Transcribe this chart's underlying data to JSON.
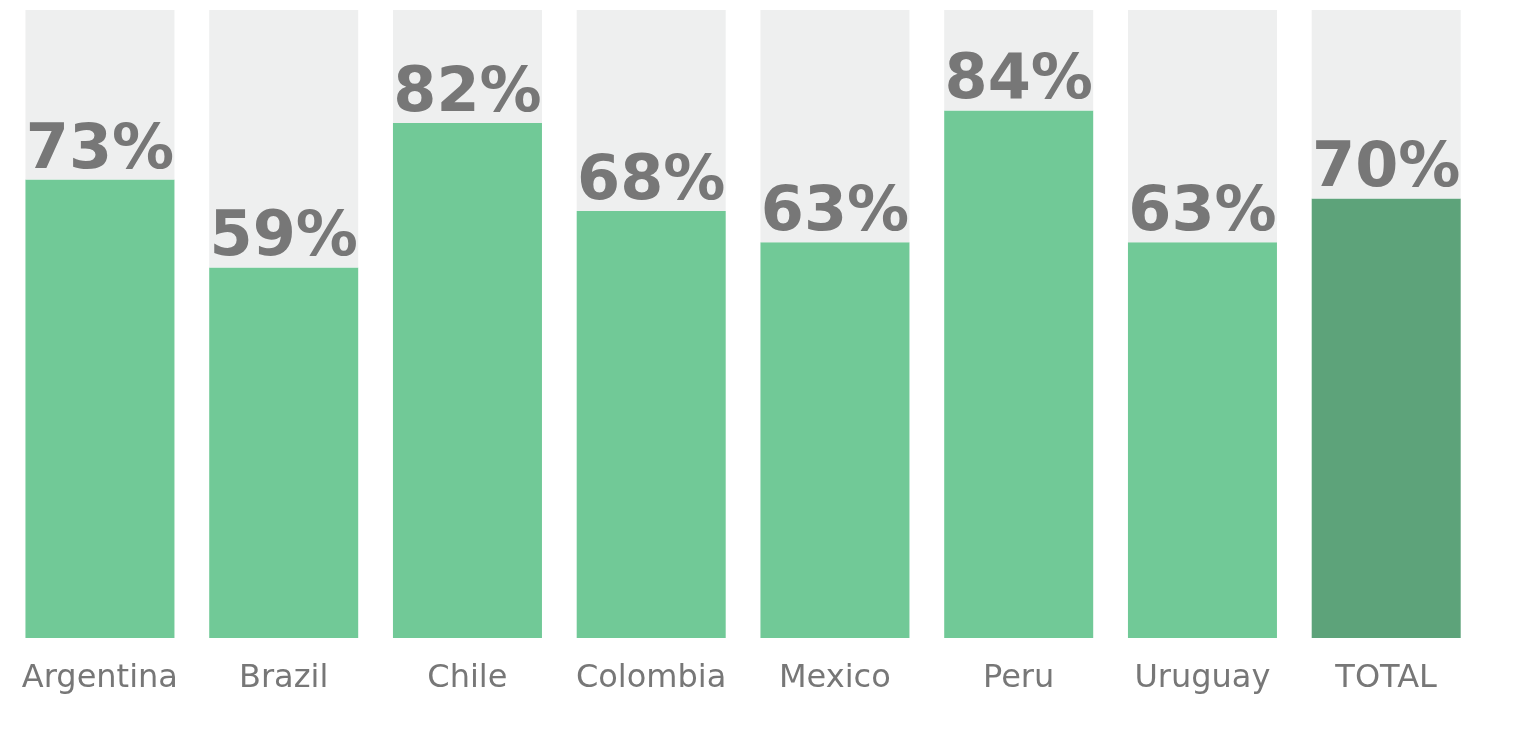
{
  "chart_data": {
    "type": "bar",
    "categories": [
      "Argentina",
      "Brazil",
      "Chile",
      "Colombia",
      "Mexico",
      "Peru",
      "Uruguay",
      "TOTAL"
    ],
    "stacked": true,
    "ylim": [
      0,
      100
    ],
    "tick_labels": "x",
    "series": [
      {
        "colors": [
          "#71c997",
          "#71c997",
          "#71c997",
          "#71c997",
          "#71c997",
          "#71c997",
          "#71c997",
          "#5da37a"
        ],
        "values": [
          73,
          59,
          82,
          68,
          63,
          84,
          63,
          70
        ],
        "value_labels": [
          "73%",
          "59%",
          "82%",
          "68%",
          "63%",
          "84%",
          "63%",
          "70%"
        ]
      },
      {
        "color": "#eeefef",
        "values": [
          27,
          41,
          18,
          32,
          37,
          16,
          37,
          30
        ]
      }
    ]
  }
}
